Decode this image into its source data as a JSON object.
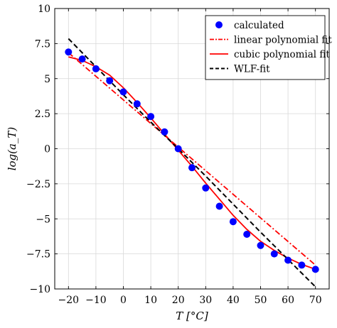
{
  "chart_data": {
    "type": "line",
    "xlabel": "T [°C]",
    "ylabel": "log(a_T)",
    "xlim": [
      -25,
      75
    ],
    "ylim": [
      -10,
      10
    ],
    "xticks": [
      -20,
      -10,
      0,
      10,
      20,
      30,
      40,
      50,
      60,
      70
    ],
    "yticks": [
      -10,
      -7.5,
      -5,
      -2.5,
      0,
      2.5,
      5,
      7.5,
      10
    ],
    "ytick_labels": [
      "−10",
      "−7.5",
      "−5",
      "−2.5",
      "0",
      "2.5",
      "5",
      "7.5",
      "10"
    ],
    "xtick_labels": [
      "−20",
      "−10",
      "0",
      "10",
      "20",
      "30",
      "40",
      "50",
      "60",
      "70"
    ],
    "grid": true,
    "legend_position": "top-right",
    "series": [
      {
        "name": "calculated",
        "style": "markers",
        "color": "#0000ff",
        "x": [
          -20,
          -15,
          -10,
          -5,
          0,
          5,
          10,
          15,
          20,
          25,
          30,
          35,
          40,
          45,
          50,
          55,
          60,
          65,
          70
        ],
        "y": [
          6.9,
          6.4,
          5.7,
          4.85,
          4.05,
          3.2,
          2.3,
          1.2,
          0.0,
          -1.35,
          -2.8,
          -4.1,
          -5.2,
          -6.1,
          -6.9,
          -7.5,
          -7.95,
          -8.3,
          -8.6
        ]
      },
      {
        "name": "linear polynomial fit",
        "style": "dashdot",
        "color": "#ff0000",
        "x": [
          -20,
          70
        ],
        "y": [
          6.85,
          -8.3
        ]
      },
      {
        "name": "cubic polynomial fit",
        "style": "solid",
        "color": "#ff0000",
        "x": [
          -20,
          -15,
          -10,
          -5,
          0,
          5,
          10,
          15,
          20,
          25,
          30,
          35,
          40,
          45,
          50,
          55,
          60,
          65,
          70
        ],
        "y": [
          6.55,
          6.3,
          5.85,
          5.25,
          4.35,
          3.3,
          2.2,
          1.05,
          -0.1,
          -1.25,
          -2.45,
          -3.6,
          -4.75,
          -5.75,
          -6.6,
          -7.25,
          -7.8,
          -8.25,
          -8.6
        ]
      },
      {
        "name": "WLF-fit",
        "style": "dashed",
        "color": "#000000",
        "x": [
          -20,
          -10,
          0,
          10,
          20,
          30,
          40,
          50,
          60,
          70
        ],
        "y": [
          7.85,
          5.85,
          3.85,
          1.9,
          0.0,
          -1.95,
          -3.95,
          -5.95,
          -7.9,
          -9.85
        ]
      }
    ]
  }
}
